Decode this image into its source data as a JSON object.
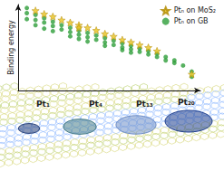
{
  "chart_data": {
    "type": "scatter",
    "y_label": "Binding energy",
    "xlim": [
      0,
      21
    ],
    "ylim": [
      0,
      10
    ],
    "tick_labels": false,
    "grid": false,
    "legend": "upper right",
    "series": [
      {
        "name": "Ptₙ on MoS₂",
        "color": "#e8c21e",
        "marker": "star",
        "x": [
          2,
          3,
          4,
          5,
          6,
          7,
          7,
          8,
          9,
          10,
          11,
          12,
          13,
          14,
          15,
          16,
          20
        ],
        "values": [
          9.3,
          8.9,
          8.6,
          8.2,
          7.9,
          7.6,
          7.3,
          7.3,
          7.0,
          6.6,
          6.3,
          5.9,
          5.6,
          5.3,
          5.0,
          4.6,
          1.9
        ]
      },
      {
        "name": "Ptₙ on GB",
        "color": "#2e9e3a",
        "marker": "circle",
        "x": [
          1,
          1,
          1,
          2,
          2,
          2,
          3,
          3,
          3,
          4,
          4,
          4,
          5,
          5,
          6,
          6,
          6,
          7,
          7,
          7,
          8,
          8,
          8,
          9,
          9,
          10,
          10,
          10,
          11,
          11,
          12,
          12,
          12,
          13,
          13,
          13,
          14,
          14,
          15,
          15,
          16,
          16,
          17,
          17,
          18,
          18,
          19,
          20,
          20
        ],
        "values": [
          9.6,
          9.0,
          8.3,
          8.8,
          8.2,
          7.6,
          8.4,
          7.9,
          7.2,
          8.0,
          7.5,
          6.9,
          7.6,
          7.1,
          7.3,
          6.8,
          6.3,
          7.0,
          6.5,
          6.0,
          6.7,
          6.2,
          5.7,
          6.4,
          5.9,
          6.1,
          5.6,
          5.2,
          5.8,
          5.3,
          5.5,
          5.0,
          4.7,
          5.2,
          4.8,
          4.4,
          4.9,
          4.5,
          4.6,
          4.2,
          4.3,
          3.9,
          3.9,
          3.5,
          3.5,
          3.2,
          2.9,
          2.2,
          1.6
        ]
      }
    ],
    "annotations": [
      "Pt₁",
      "Pt₄",
      "Pt₁₃",
      "Pt₂₀"
    ]
  }
}
